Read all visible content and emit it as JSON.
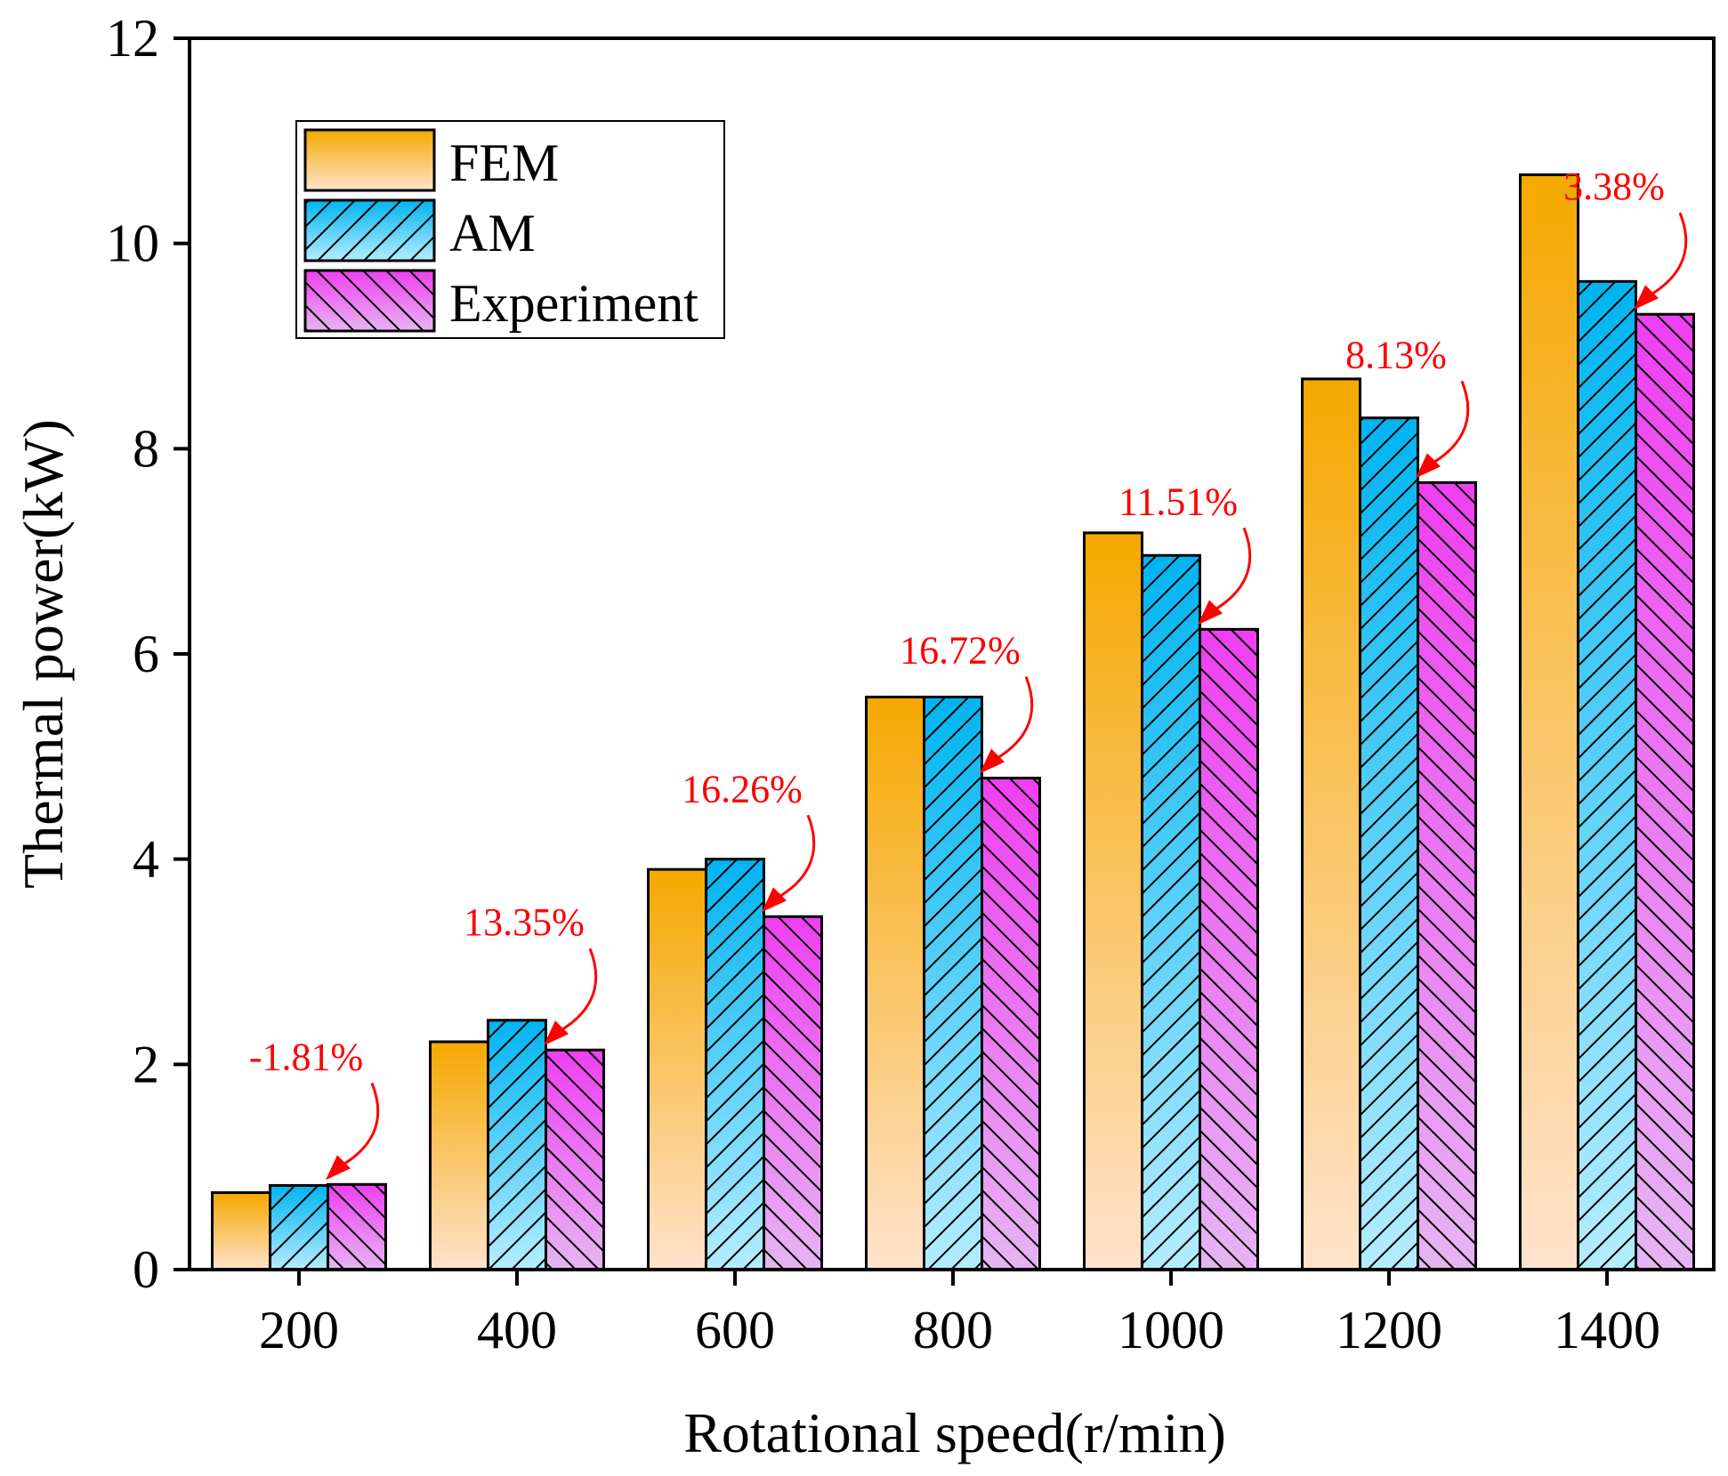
{
  "chart_data": {
    "type": "bar",
    "title": "",
    "xlabel": "Rotational speed(r/min)",
    "ylabel": "Thermal power(kW)",
    "categories": [
      "200",
      "400",
      "600",
      "800",
      "1000",
      "1200",
      "1400"
    ],
    "ylim": [
      0,
      12
    ],
    "yticks": [
      0,
      2,
      4,
      6,
      8,
      10,
      12
    ],
    "ytick_labels": [
      "0",
      "2",
      "4",
      "6",
      "8",
      "10",
      "12"
    ],
    "legend_position": "top-left",
    "grid": false,
    "series": [
      {
        "name": "FEM",
        "values": [
          0.75,
          2.22,
          3.9,
          5.58,
          7.18,
          8.68,
          10.67
        ],
        "color_top": "#f5a800",
        "color_bottom": "#ffe3cc",
        "hatch": "none"
      },
      {
        "name": "AM",
        "values": [
          0.82,
          2.43,
          4.0,
          5.58,
          6.96,
          8.3,
          9.63
        ],
        "color_top": "#00b4f0",
        "color_bottom": "#b5ecff",
        "hatch": "forward"
      },
      {
        "name": "Experiment",
        "values": [
          0.83,
          2.14,
          3.44,
          4.79,
          6.24,
          7.67,
          9.31
        ],
        "color_top": "#ee3ff0",
        "color_bottom": "#e6b5f2",
        "hatch": "back"
      }
    ],
    "annotations": [
      {
        "category": "200",
        "label": "-1.81%"
      },
      {
        "category": "400",
        "label": "13.35%"
      },
      {
        "category": "600",
        "label": "16.26%"
      },
      {
        "category": "800",
        "label": "16.72%"
      },
      {
        "category": "1000",
        "label": "11.51%"
      },
      {
        "category": "1200",
        "label": "8.13%"
      },
      {
        "category": "1400",
        "label": "3.38%"
      }
    ],
    "annotation_color": "#ff0000"
  }
}
